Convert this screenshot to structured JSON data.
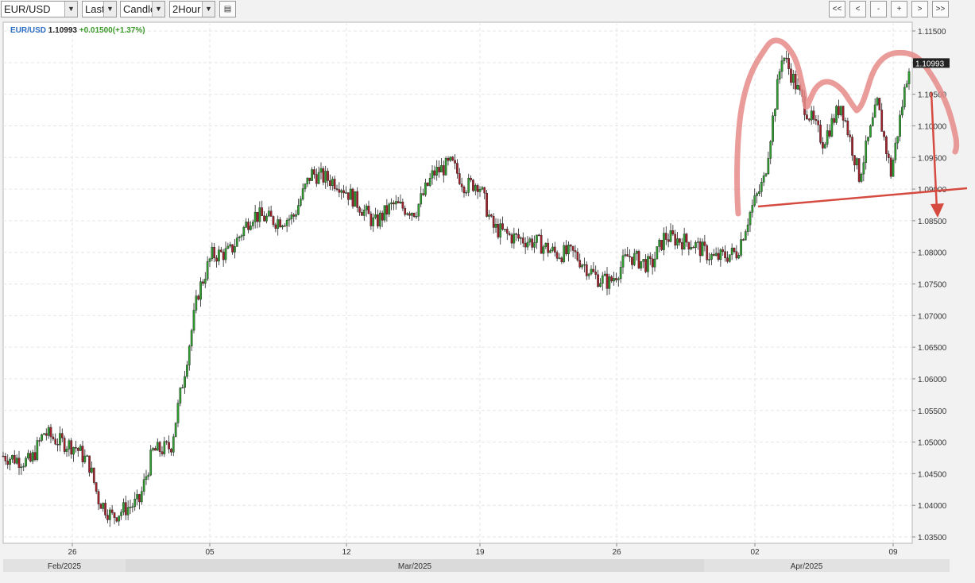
{
  "toolbar": {
    "symbol": "EUR/USD",
    "price_type": "Last",
    "chart_type": "Candle",
    "interval": "2Hour",
    "nav_buttons": [
      "<<",
      "<",
      "-",
      "+",
      ">",
      ">>"
    ]
  },
  "header": {
    "symbol": "EUR/USD",
    "last": "1.10993",
    "change": "+0.01500(+1.37%)"
  },
  "price_tag": "1.10993",
  "colors": {
    "up": "#2e9e2e",
    "down": "#a3202a",
    "symbol_blue": "#2d6fc4",
    "change_green": "#3c9a2a",
    "annotation_pink": "#e58b88",
    "annotation_red": "#d64b40"
  },
  "chart_data": {
    "type": "candlestick",
    "title": "",
    "y_ticks": [
      "1.11500",
      "1.11000",
      "1.10500",
      "1.10000",
      "1.09500",
      "1.09000",
      "1.08500",
      "1.08000",
      "1.07500",
      "1.07000",
      "1.06500",
      "1.06000",
      "1.05500",
      "1.05000",
      "1.04500",
      "1.04000",
      "1.03500"
    ],
    "ylim": [
      1.0345,
      1.1155
    ],
    "x_ticks": [
      "26",
      "05",
      "12",
      "19",
      "26",
      "02",
      "09"
    ],
    "months": [
      "Feb/2025",
      "Mar/2025",
      "Apr/2025"
    ],
    "grid": true,
    "approx_close_path": [
      [
        0,
        1.0478
      ],
      [
        0.03,
        1.0468
      ],
      [
        0.045,
        1.0515
      ],
      [
        0.06,
        1.0502
      ],
      [
        0.08,
        1.0492
      ],
      [
        0.095,
        1.0465
      ],
      [
        0.105,
        1.041
      ],
      [
        0.12,
        1.0382
      ],
      [
        0.135,
        1.0395
      ],
      [
        0.15,
        1.0405
      ],
      [
        0.165,
        1.0485
      ],
      [
        0.185,
        1.0492
      ],
      [
        0.2,
        1.061
      ],
      [
        0.215,
        1.0735
      ],
      [
        0.23,
        1.0795
      ],
      [
        0.25,
        1.08
      ],
      [
        0.275,
        1.086
      ],
      [
        0.3,
        1.085
      ],
      [
        0.32,
        1.0855
      ],
      [
        0.34,
        1.0925
      ],
      [
        0.37,
        1.091
      ],
      [
        0.39,
        1.088
      ],
      [
        0.41,
        1.0845
      ],
      [
        0.43,
        1.0875
      ],
      [
        0.455,
        1.0865
      ],
      [
        0.475,
        1.0925
      ],
      [
        0.495,
        1.094
      ],
      [
        0.51,
        1.0905
      ],
      [
        0.525,
        1.091
      ],
      [
        0.54,
        1.084
      ],
      [
        0.56,
        1.0825
      ],
      [
        0.59,
        1.0815
      ],
      [
        0.61,
        1.0798
      ],
      [
        0.63,
        1.0798
      ],
      [
        0.655,
        1.076
      ],
      [
        0.67,
        1.0752
      ],
      [
        0.69,
        1.0795
      ],
      [
        0.715,
        1.0778
      ],
      [
        0.73,
        1.0825
      ],
      [
        0.76,
        1.0815
      ],
      [
        0.785,
        1.079
      ],
      [
        0.81,
        1.08
      ],
      [
        0.825,
        1.0865
      ],
      [
        0.84,
        1.0915
      ],
      [
        0.86,
        1.1115
      ],
      [
        0.885,
        1.103
      ],
      [
        0.905,
        1.0975
      ],
      [
        0.925,
        1.1035
      ],
      [
        0.945,
        1.092
      ],
      [
        0.965,
        1.1035
      ],
      [
        0.98,
        1.0925
      ],
      [
        1.0,
        1.1099
      ]
    ],
    "annotations": {
      "neckline": "rising support line from ~1.0870 (Apr 2) to ~1.0905 (right edge)",
      "shape": "hand-drawn head-and-shoulders outline",
      "arrow": "down arrow from ~1.1060 to ~1.0850"
    }
  }
}
